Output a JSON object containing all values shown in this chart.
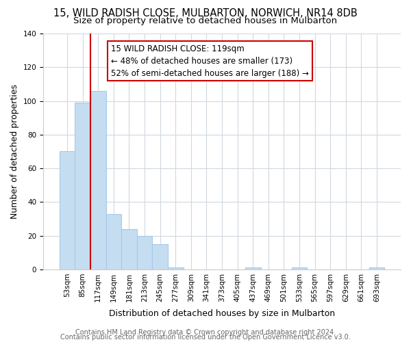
{
  "title": "15, WILD RADISH CLOSE, MULBARTON, NORWICH, NR14 8DB",
  "subtitle": "Size of property relative to detached houses in Mulbarton",
  "xlabel": "Distribution of detached houses by size in Mulbarton",
  "ylabel": "Number of detached properties",
  "bar_labels": [
    "53sqm",
    "85sqm",
    "117sqm",
    "149sqm",
    "181sqm",
    "213sqm",
    "245sqm",
    "277sqm",
    "309sqm",
    "341sqm",
    "373sqm",
    "405sqm",
    "437sqm",
    "469sqm",
    "501sqm",
    "533sqm",
    "565sqm",
    "597sqm",
    "629sqm",
    "661sqm",
    "693sqm"
  ],
  "bar_values": [
    70,
    99,
    106,
    33,
    24,
    20,
    15,
    1,
    0,
    0,
    0,
    0,
    1,
    0,
    0,
    1,
    0,
    0,
    0,
    0,
    1
  ],
  "bar_color": "#c5ddf0",
  "bar_edge_color": "#a8c8e8",
  "vline_color": "#cc0000",
  "vline_x_index": 2,
  "ylim": [
    0,
    140
  ],
  "annotation_box_text": "15 WILD RADISH CLOSE: 119sqm\n← 48% of detached houses are smaller (173)\n52% of semi-detached houses are larger (188) →",
  "footer_line1": "Contains HM Land Registry data © Crown copyright and database right 2024.",
  "footer_line2": "Contains public sector information licensed under the Open Government Licence v3.0.",
  "title_fontsize": 10.5,
  "subtitle_fontsize": 9.5,
  "tick_fontsize": 7.5,
  "ylabel_fontsize": 9,
  "xlabel_fontsize": 9,
  "annotation_fontsize": 8.5,
  "footer_fontsize": 7,
  "grid_color": "#d0d8e0",
  "yticks": [
    0,
    20,
    40,
    60,
    80,
    100,
    120,
    140
  ]
}
